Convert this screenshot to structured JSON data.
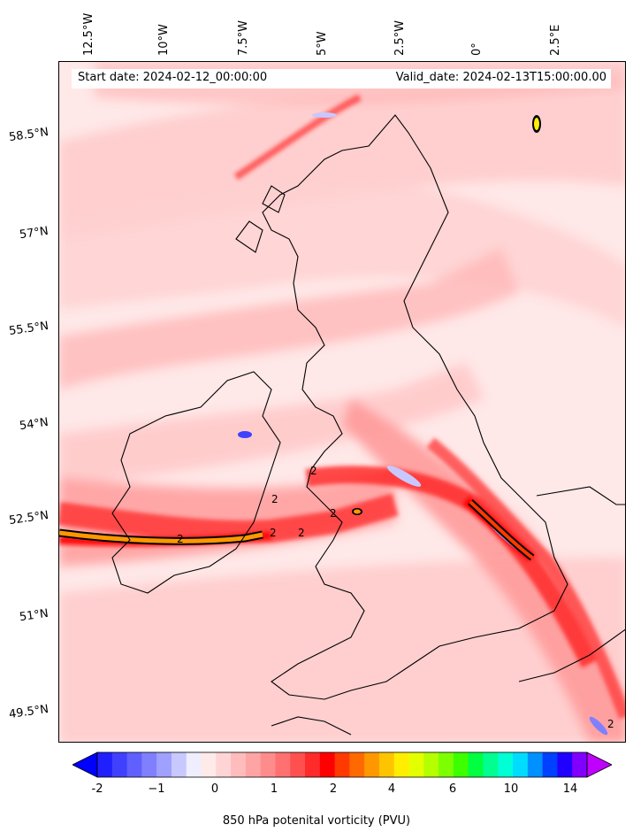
{
  "map": {
    "start_date": "Start date: 2024-02-12_00:00:00",
    "valid_date": "Valid_date: 2024-02-13T15:00:00.00",
    "longitude_labels": [
      "12.5°W",
      "10°W",
      "7.5°W",
      "5°W",
      "2.5°W",
      "0°",
      "2.5°E"
    ],
    "latitude_labels": [
      "58.5°N",
      "57°N",
      "55.5°N",
      "54°N",
      "52.5°N",
      "51°N",
      "49.5°N"
    ],
    "contour_label": "2"
  },
  "colorbar": {
    "label": "850 hPa potenital vorticity (PVU)",
    "ticks": [
      "-2",
      "−1",
      "0",
      "1",
      "2",
      "4",
      "6",
      "10",
      "14"
    ],
    "levels": [
      "-2",
      "-1.75",
      "-1.5",
      "-1.25",
      "-1",
      "-0.75",
      "-0.5",
      "-0.25",
      "0",
      "0.25",
      "0.5",
      "0.75",
      "1",
      "1.25",
      "1.5",
      "1.75",
      "2",
      "2.5",
      "3",
      "3.5",
      "4",
      "4.5",
      "5",
      "5.5",
      "6",
      "7",
      "8",
      "9",
      "10",
      "11",
      "12",
      "13",
      "14",
      "15",
      "16"
    ],
    "colors": [
      "#0000ff",
      "#2020ff",
      "#4040ff",
      "#6060ff",
      "#8080ff",
      "#a0a0ff",
      "#c8c8ff",
      "#eeeeff",
      "#ffeaea",
      "#ffd4d4",
      "#ffbcbc",
      "#ffa4a4",
      "#ff8c8c",
      "#ff7070",
      "#ff5050",
      "#ff2a2a",
      "#ff0000",
      "#ff3a00",
      "#ff6a00",
      "#ff9800",
      "#ffc400",
      "#ffee00",
      "#e4ff00",
      "#b4ff00",
      "#7cff00",
      "#3cff00",
      "#00ff40",
      "#00ff90",
      "#00ffd4",
      "#00dcff",
      "#0090ff",
      "#0040ff",
      "#2000ff",
      "#8000ff",
      "#c000ff"
    ]
  }
}
